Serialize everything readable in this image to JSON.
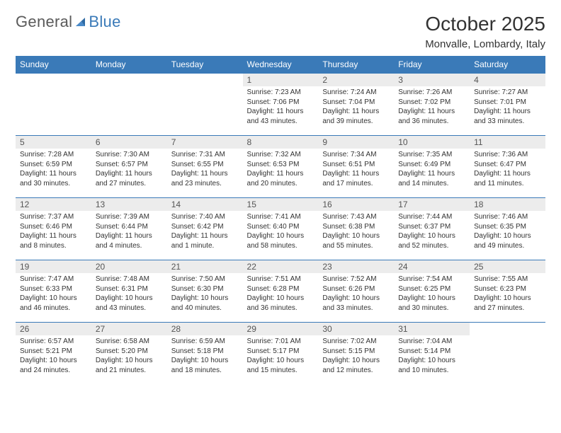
{
  "logo": {
    "word1": "General",
    "word2": "Blue"
  },
  "header": {
    "month_title": "October 2025",
    "location": "Monvalle, Lombardy, Italy"
  },
  "colors": {
    "header_bg": "#3a7ab8",
    "header_text": "#ffffff",
    "daynum_bg": "#ececec",
    "daynum_text": "#555555",
    "body_text": "#333333",
    "row_border": "#3a7ab8",
    "page_bg": "#ffffff",
    "logo_gray": "#5a5a5a",
    "logo_blue": "#3a7ab8"
  },
  "day_names": [
    "Sunday",
    "Monday",
    "Tuesday",
    "Wednesday",
    "Thursday",
    "Friday",
    "Saturday"
  ],
  "weeks": [
    [
      null,
      null,
      null,
      {
        "n": "1",
        "sunrise": "Sunrise: 7:23 AM",
        "sunset": "Sunset: 7:06 PM",
        "day1": "Daylight: 11 hours",
        "day2": "and 43 minutes."
      },
      {
        "n": "2",
        "sunrise": "Sunrise: 7:24 AM",
        "sunset": "Sunset: 7:04 PM",
        "day1": "Daylight: 11 hours",
        "day2": "and 39 minutes."
      },
      {
        "n": "3",
        "sunrise": "Sunrise: 7:26 AM",
        "sunset": "Sunset: 7:02 PM",
        "day1": "Daylight: 11 hours",
        "day2": "and 36 minutes."
      },
      {
        "n": "4",
        "sunrise": "Sunrise: 7:27 AM",
        "sunset": "Sunset: 7:01 PM",
        "day1": "Daylight: 11 hours",
        "day2": "and 33 minutes."
      }
    ],
    [
      {
        "n": "5",
        "sunrise": "Sunrise: 7:28 AM",
        "sunset": "Sunset: 6:59 PM",
        "day1": "Daylight: 11 hours",
        "day2": "and 30 minutes."
      },
      {
        "n": "6",
        "sunrise": "Sunrise: 7:30 AM",
        "sunset": "Sunset: 6:57 PM",
        "day1": "Daylight: 11 hours",
        "day2": "and 27 minutes."
      },
      {
        "n": "7",
        "sunrise": "Sunrise: 7:31 AM",
        "sunset": "Sunset: 6:55 PM",
        "day1": "Daylight: 11 hours",
        "day2": "and 23 minutes."
      },
      {
        "n": "8",
        "sunrise": "Sunrise: 7:32 AM",
        "sunset": "Sunset: 6:53 PM",
        "day1": "Daylight: 11 hours",
        "day2": "and 20 minutes."
      },
      {
        "n": "9",
        "sunrise": "Sunrise: 7:34 AM",
        "sunset": "Sunset: 6:51 PM",
        "day1": "Daylight: 11 hours",
        "day2": "and 17 minutes."
      },
      {
        "n": "10",
        "sunrise": "Sunrise: 7:35 AM",
        "sunset": "Sunset: 6:49 PM",
        "day1": "Daylight: 11 hours",
        "day2": "and 14 minutes."
      },
      {
        "n": "11",
        "sunrise": "Sunrise: 7:36 AM",
        "sunset": "Sunset: 6:47 PM",
        "day1": "Daylight: 11 hours",
        "day2": "and 11 minutes."
      }
    ],
    [
      {
        "n": "12",
        "sunrise": "Sunrise: 7:37 AM",
        "sunset": "Sunset: 6:46 PM",
        "day1": "Daylight: 11 hours",
        "day2": "and 8 minutes."
      },
      {
        "n": "13",
        "sunrise": "Sunrise: 7:39 AM",
        "sunset": "Sunset: 6:44 PM",
        "day1": "Daylight: 11 hours",
        "day2": "and 4 minutes."
      },
      {
        "n": "14",
        "sunrise": "Sunrise: 7:40 AM",
        "sunset": "Sunset: 6:42 PM",
        "day1": "Daylight: 11 hours",
        "day2": "and 1 minute."
      },
      {
        "n": "15",
        "sunrise": "Sunrise: 7:41 AM",
        "sunset": "Sunset: 6:40 PM",
        "day1": "Daylight: 10 hours",
        "day2": "and 58 minutes."
      },
      {
        "n": "16",
        "sunrise": "Sunrise: 7:43 AM",
        "sunset": "Sunset: 6:38 PM",
        "day1": "Daylight: 10 hours",
        "day2": "and 55 minutes."
      },
      {
        "n": "17",
        "sunrise": "Sunrise: 7:44 AM",
        "sunset": "Sunset: 6:37 PM",
        "day1": "Daylight: 10 hours",
        "day2": "and 52 minutes."
      },
      {
        "n": "18",
        "sunrise": "Sunrise: 7:46 AM",
        "sunset": "Sunset: 6:35 PM",
        "day1": "Daylight: 10 hours",
        "day2": "and 49 minutes."
      }
    ],
    [
      {
        "n": "19",
        "sunrise": "Sunrise: 7:47 AM",
        "sunset": "Sunset: 6:33 PM",
        "day1": "Daylight: 10 hours",
        "day2": "and 46 minutes."
      },
      {
        "n": "20",
        "sunrise": "Sunrise: 7:48 AM",
        "sunset": "Sunset: 6:31 PM",
        "day1": "Daylight: 10 hours",
        "day2": "and 43 minutes."
      },
      {
        "n": "21",
        "sunrise": "Sunrise: 7:50 AM",
        "sunset": "Sunset: 6:30 PM",
        "day1": "Daylight: 10 hours",
        "day2": "and 40 minutes."
      },
      {
        "n": "22",
        "sunrise": "Sunrise: 7:51 AM",
        "sunset": "Sunset: 6:28 PM",
        "day1": "Daylight: 10 hours",
        "day2": "and 36 minutes."
      },
      {
        "n": "23",
        "sunrise": "Sunrise: 7:52 AM",
        "sunset": "Sunset: 6:26 PM",
        "day1": "Daylight: 10 hours",
        "day2": "and 33 minutes."
      },
      {
        "n": "24",
        "sunrise": "Sunrise: 7:54 AM",
        "sunset": "Sunset: 6:25 PM",
        "day1": "Daylight: 10 hours",
        "day2": "and 30 minutes."
      },
      {
        "n": "25",
        "sunrise": "Sunrise: 7:55 AM",
        "sunset": "Sunset: 6:23 PM",
        "day1": "Daylight: 10 hours",
        "day2": "and 27 minutes."
      }
    ],
    [
      {
        "n": "26",
        "sunrise": "Sunrise: 6:57 AM",
        "sunset": "Sunset: 5:21 PM",
        "day1": "Daylight: 10 hours",
        "day2": "and 24 minutes."
      },
      {
        "n": "27",
        "sunrise": "Sunrise: 6:58 AM",
        "sunset": "Sunset: 5:20 PM",
        "day1": "Daylight: 10 hours",
        "day2": "and 21 minutes."
      },
      {
        "n": "28",
        "sunrise": "Sunrise: 6:59 AM",
        "sunset": "Sunset: 5:18 PM",
        "day1": "Daylight: 10 hours",
        "day2": "and 18 minutes."
      },
      {
        "n": "29",
        "sunrise": "Sunrise: 7:01 AM",
        "sunset": "Sunset: 5:17 PM",
        "day1": "Daylight: 10 hours",
        "day2": "and 15 minutes."
      },
      {
        "n": "30",
        "sunrise": "Sunrise: 7:02 AM",
        "sunset": "Sunset: 5:15 PM",
        "day1": "Daylight: 10 hours",
        "day2": "and 12 minutes."
      },
      {
        "n": "31",
        "sunrise": "Sunrise: 7:04 AM",
        "sunset": "Sunset: 5:14 PM",
        "day1": "Daylight: 10 hours",
        "day2": "and 10 minutes."
      },
      null
    ]
  ]
}
